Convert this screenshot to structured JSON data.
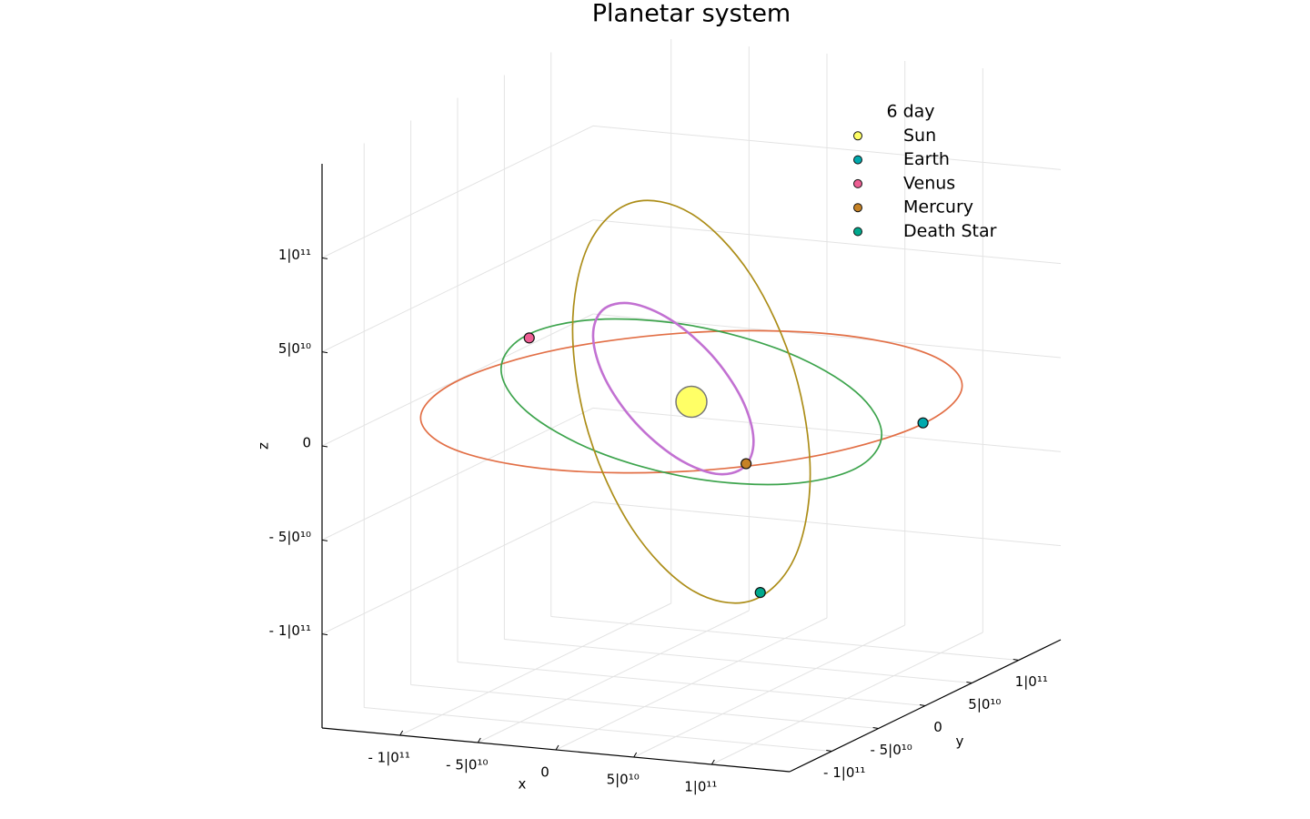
{
  "chart_data": {
    "type": "scatter3d",
    "title": "Planetar system",
    "xlabel": "x",
    "ylabel": "y",
    "zlabel": "z",
    "xlim": [
      -150000000000.0,
      150000000000.0
    ],
    "ylim": [
      -145000000000.0,
      145000000000.0
    ],
    "zlim": [
      -150000000000.0,
      150000000000.0
    ],
    "xticks": [
      {
        "value": -100000000000.0,
        "label": "- 1|0¹¹"
      },
      {
        "value": -50000000000.0,
        "label": "- 5|0¹⁰"
      },
      0,
      {
        "value": 50000000000.0,
        "label": "5|0¹⁰"
      },
      {
        "value": 100000000000.0,
        "label": "1|0¹¹"
      }
    ],
    "yticks": [
      {
        "value": -100000000000.0,
        "label": "- 1|0¹¹"
      },
      {
        "value": -50000000000.0,
        "label": "- 5|0¹⁰"
      },
      0,
      {
        "value": 50000000000.0,
        "label": "5|0¹⁰"
      },
      {
        "value": 100000000000.0,
        "label": "1|0¹¹"
      }
    ],
    "zticks": [
      {
        "value": -100000000000.0,
        "label": "- 1|0¹¹"
      },
      {
        "value": -50000000000.0,
        "label": "- 5|0¹⁰"
      },
      0,
      {
        "value": 50000000000.0,
        "label": "5|0¹⁰"
      },
      {
        "value": 100000000000.0,
        "label": "1|0¹¹"
      }
    ],
    "grid": true,
    "legend": "top right",
    "legend_title": "6 day",
    "orbits": [
      {
        "color": "#e26f46",
        "x": [
          149000000000.0,
          129000000000.0,
          74500000000.0,
          0,
          -74500000000.0,
          -129000000000.0,
          -149000000000.0,
          -129000000000.0,
          -74500000000.0,
          0,
          74500000000.0,
          129000000000.0
        ],
        "y": [
          0,
          74500000000.0,
          129000000000.0,
          149000000000.0,
          129000000000.0,
          74500000000.0,
          0,
          -74500000000.0,
          -129000000000.0,
          -149000000000.0,
          -129000000000.0,
          -74500000000.0
        ],
        "z": [
          0,
          0,
          0,
          0,
          0,
          0,
          0,
          0,
          0,
          0,
          0,
          0
        ]
      },
      {
        "color": "#3da44d",
        "x": [
          99000000000.0,
          65000000000.0,
          13700000000.0,
          -41400000000.0,
          -85300000000.0,
          -106400000000.0,
          -99000000000.0,
          -65000000000.0,
          -13700000000.0,
          41400000000.0,
          85300000000.0,
          106400000000.0
        ],
        "y": [
          38500000000.0,
          67700000000.0,
          78800000000.0,
          68800000000.0,
          40300000000.0,
          1100000000.0,
          -38500000000.0,
          -67700000000.0,
          -78800000000.0,
          -68800000000.0,
          -40300000000.0,
          -1100000000.0
        ],
        "z": [
          -19000000000.0,
          -6100000000.0,
          8400000000.0,
          20700000000.0,
          27400000000.0,
          26800000000.0,
          19000000000.0,
          6100000000.0,
          -8400000000.0,
          -20700000000.0,
          -27400000000.0,
          -26800000000.0
        ]
      },
      {
        "color": "#ac8d18",
        "x": [
          76200000000.0,
          66000000000.0,
          38100000000.0,
          0,
          -38100000000.0,
          -66000000000.0,
          -76200000000.0,
          -66000000000.0,
          -38100000000.0,
          0,
          38100000000.0,
          66000000000.0
        ],
        "y": [
          0,
          0,
          0,
          0,
          0,
          0,
          0,
          0,
          0,
          0,
          0,
          0
        ],
        "z": [
          -32600000000.0,
          21800000000.0,
          70300000000.0,
          100000000000.0,
          102900000000.0,
          78200000000.0,
          32600000000.0,
          -21800000000.0,
          -70300000000.0,
          -100000000000.0,
          -102900000000.0,
          -78200000000.0
        ]
      },
      {
        "color": "#c271d2",
        "x": [
          33700000000.0,
          33500000000.0,
          21200000000.0,
          100000000.0,
          -24200000000.0,
          -45000000000.0,
          -56900000000.0,
          -56700000000.0,
          -44400000000.0,
          -23300000000.0,
          1000000000.0,
          21800000000.0
        ],
        "y": [
          0,
          10600000000.0,
          18400000000.0,
          21200000000.0,
          18400000000.0,
          10600000000.0,
          0,
          -10600000000.0,
          -18400000000.0,
          -21200000000.0,
          -18400000000.0,
          -10600000000.0
        ],
        "z": [
          -32200000000.0,
          -20200000000.0,
          -1100000000.0,
          19900000000.0,
          37200000000.0,
          46200000000.0,
          44400000000.0,
          32400000000.0,
          13300000000.0,
          -7700000000.0,
          -25000000000.0,
          -34000000000.0
        ]
      }
    ],
    "series": [
      {
        "name": "Sun",
        "color": "#ffff66",
        "x": [
          0
        ],
        "y": [
          0
        ],
        "z": [
          0
        ]
      },
      {
        "name": "Earth",
        "color": "#00a9ad",
        "x": [
          148000000000.0
        ],
        "y": [
          1000000000.0
        ],
        "z": [
          0
        ]
      },
      {
        "name": "Venus",
        "color": "#ed5e93",
        "x": [
          -103800000000.0
        ],
        "y": [
          -400000000.0
        ],
        "z": [
          26000000000.0
        ]
      },
      {
        "name": "Mercury",
        "color": "#c68225",
        "x": [
          34500000000.0
        ],
        "y": [
          1000000000.0
        ],
        "z": [
          -30500000000.0
        ]
      },
      {
        "name": "Death Star",
        "color": "#00a98d",
        "x": [
          44200000000.0
        ],
        "y": [
          0
        ],
        "z": [
          -98000000000.0
        ]
      }
    ]
  }
}
